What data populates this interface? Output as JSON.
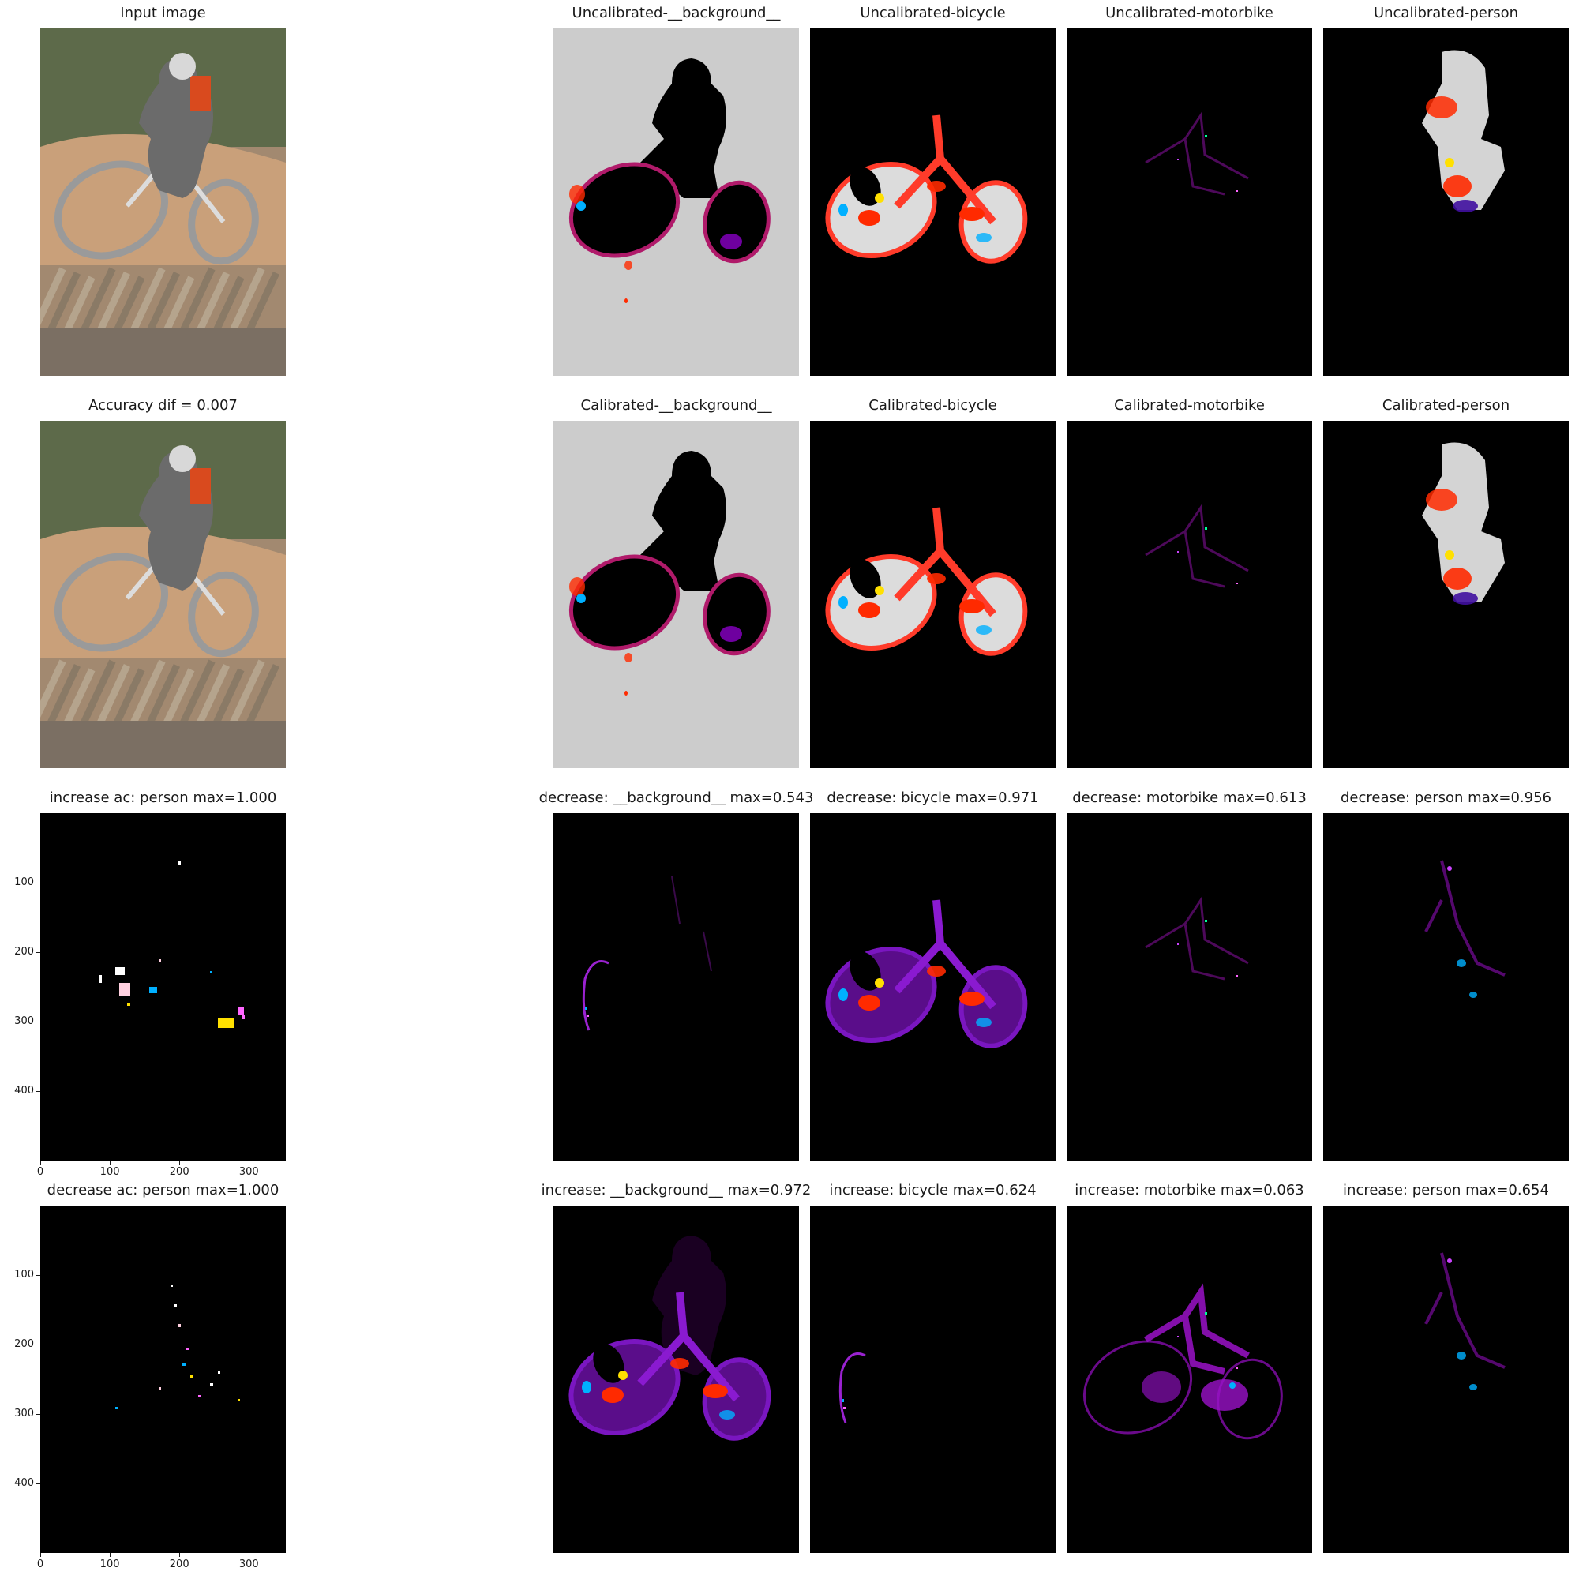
{
  "panels": [
    {
      "title": "Input image",
      "kind": "photo"
    },
    {
      "title": "Uncalibrated-__background__",
      "kind": "bg"
    },
    {
      "title": "Uncalibrated-bicycle",
      "kind": "bike"
    },
    {
      "title": "Uncalibrated-motorbike",
      "kind": "moto"
    },
    {
      "title": "Uncalibrated-person",
      "kind": "person"
    },
    {
      "title": "Accuracy dif = 0.007",
      "kind": "photo"
    },
    {
      "title": "Calibrated-__background__",
      "kind": "bg"
    },
    {
      "title": "Calibrated-bicycle",
      "kind": "bike"
    },
    {
      "title": "Calibrated-motorbike",
      "kind": "moto"
    },
    {
      "title": "Calibrated-person",
      "kind": "person"
    },
    {
      "title": "increase ac: person max=1.000",
      "kind": "dots_wheels",
      "axes": true
    },
    {
      "title": "decrease: __background__ max=0.543",
      "kind": "faint_arc"
    },
    {
      "title": "decrease: bicycle max=0.971",
      "kind": "bike_heat"
    },
    {
      "title": "decrease: motorbike max=0.613",
      "kind": "faint_moto"
    },
    {
      "title": "decrease: person max=0.956",
      "kind": "faint_person"
    },
    {
      "title": "decrease ac: person max=1.000",
      "kind": "dots_frame",
      "axes": true
    },
    {
      "title": "increase: __background__ max=0.972",
      "kind": "bike_heat_bg"
    },
    {
      "title": "increase: bicycle max=0.624",
      "kind": "faint_arc2"
    },
    {
      "title": "increase: motorbike max=0.063",
      "kind": "moto_purple"
    },
    {
      "title": "increase: person max=0.654",
      "kind": "faint_person2"
    }
  ],
  "chart_data": {
    "type": "heatmap",
    "image_grid": {
      "rows": 4,
      "cols": 5
    },
    "axes": {
      "x_ticks": [
        0,
        100,
        200,
        300
      ],
      "y_ticks": [
        100,
        200,
        300,
        400
      ],
      "x_range": [
        0,
        353
      ],
      "y_range": [
        0,
        500
      ],
      "origin": "upper"
    },
    "max_values": [
      {
        "panel": "increase ac: person",
        "max": 1.0
      },
      {
        "panel": "decrease: __background__",
        "max": 0.543
      },
      {
        "panel": "decrease: bicycle",
        "max": 0.971
      },
      {
        "panel": "decrease: motorbike",
        "max": 0.613
      },
      {
        "panel": "decrease: person",
        "max": 0.956
      },
      {
        "panel": "decrease ac: person",
        "max": 1.0
      },
      {
        "panel": "increase: __background__",
        "max": 0.972
      },
      {
        "panel": "increase: bicycle",
        "max": 0.624
      },
      {
        "panel": "increase: motorbike",
        "max": 0.063
      },
      {
        "panel": "increase: person",
        "max": 0.654
      }
    ],
    "accuracy_dif": 0.007,
    "colors": {
      "background_fill": "#cccccc",
      "map_fill": "#000000",
      "hot": "#ff2a00",
      "warm": "#ffe000",
      "cool": "#00b0ff",
      "low": "#7a00b0"
    }
  }
}
